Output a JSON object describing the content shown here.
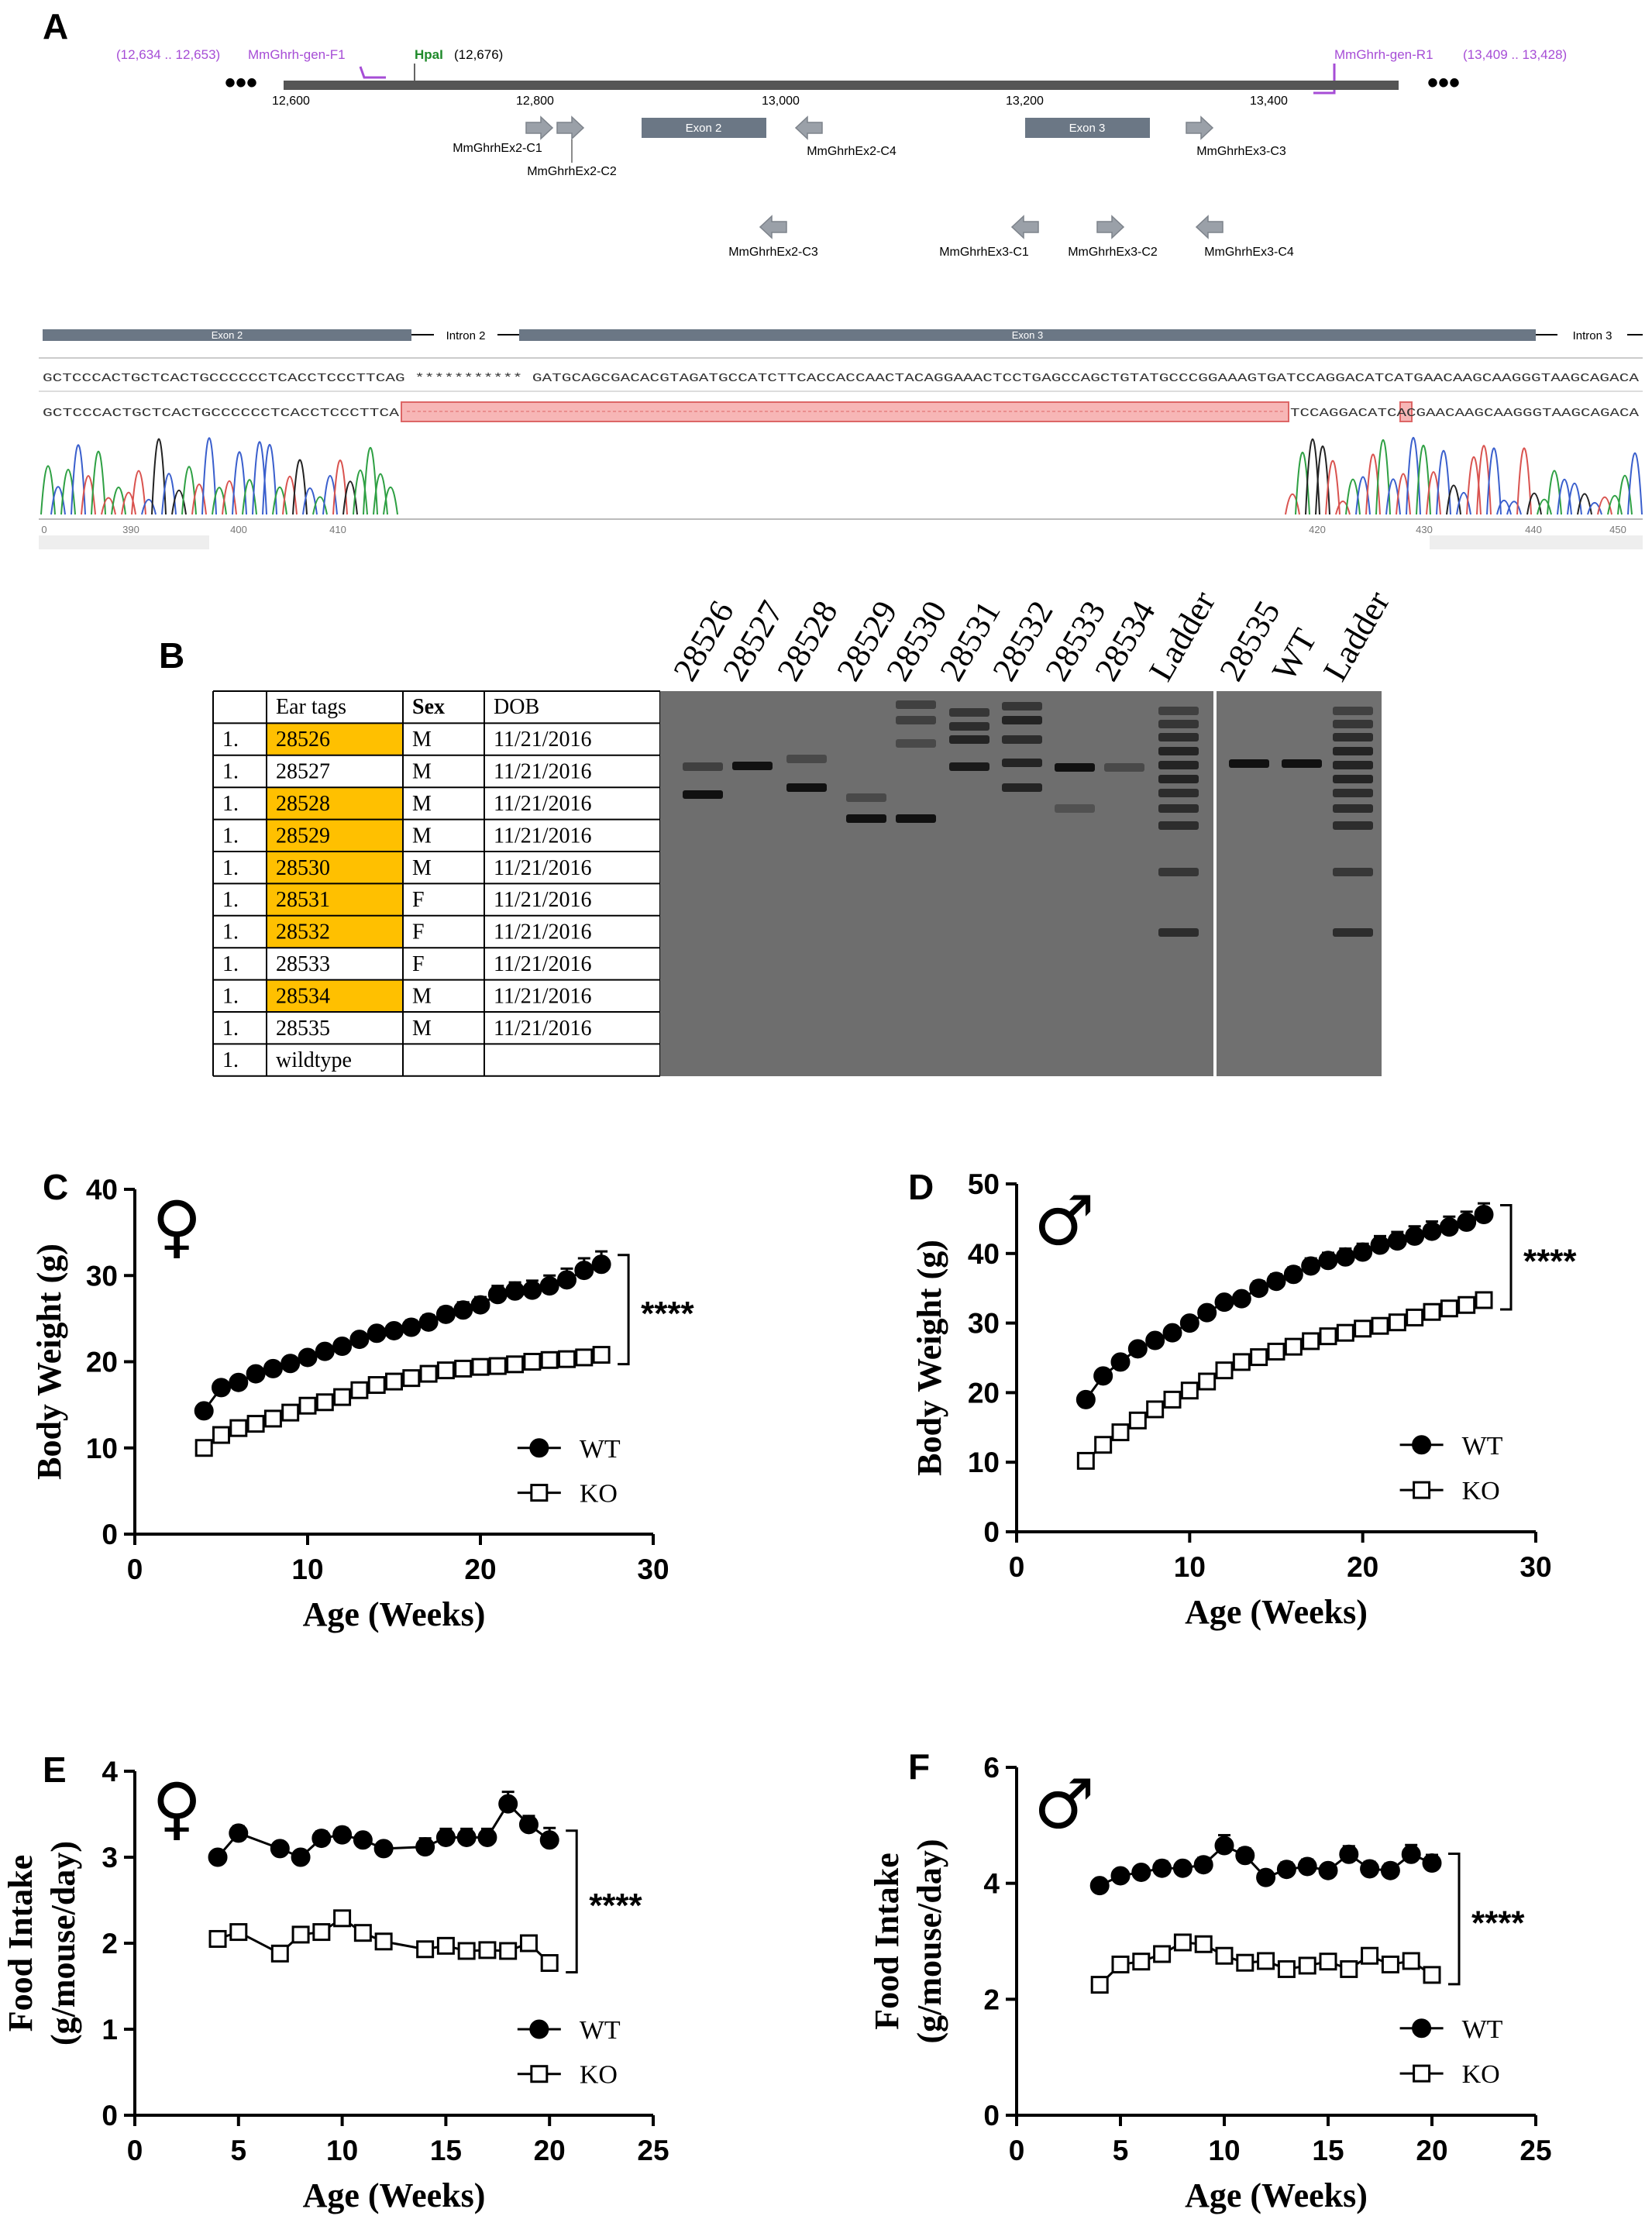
{
  "panel_a": {
    "label": "A",
    "primer_f": {
      "coords": "(12,634 .. 12,653)",
      "name": "MmGhrh-gen-F1"
    },
    "site": {
      "name": "HpaI",
      "coords": "(12,676)"
    },
    "primer_r": {
      "name": "MmGhrh-gen-R1",
      "coords": "(13,409 .. 13,428)"
    },
    "scale_ticks": [
      "12,600",
      "12,800",
      "13,000",
      "13,200",
      "13,400"
    ],
    "exons": [
      "Exon 2",
      "Exon 3"
    ],
    "guides": [
      "MmGhrhEx2-C1",
      "MmGhrhEx2-C2",
      "MmGhrhEx2-C4",
      "MmGhrhEx3-C3",
      "MmGhrhEx2-C3",
      "MmGhrhEx3-C1",
      "MmGhrhEx3-C2",
      "MmGhrhEx3-C4"
    ],
    "track": [
      "Exon 2",
      "Intron 2",
      "Exon 3",
      "Intron 3"
    ],
    "reference_sequence": "GCTCCCACTGCTCACTGCCCCCCTCACCTCCCTTCAG *********** GATGCAGCGACACGTAGATGCCATCTTCACCACCAACTACAGGAAACTCCTGAGCCAGCTGTATGCCCGGAAAGTGATCCAGGACATCATGAACAAGCAAGGGTAAGCAGACA",
    "read_sequence_left": "GCTCCCACTGCTCACTGCCCCCCTCACCTCCCTTCA",
    "read_sequence_right": "TCCAGGACATCACGAACAAGCAAGGGTAAGCAGACA",
    "trace_positions": [
      "0",
      "390",
      "400",
      "410",
      "420",
      "430",
      "440",
      "450"
    ]
  },
  "panel_b": {
    "label": "B",
    "table": {
      "header": [
        "Ear tags",
        "Sex",
        "DOB"
      ],
      "highlight_color": "#ffc000",
      "rows": [
        {
          "cells": [
            "1.",
            "28526",
            "M",
            "11/21/2016"
          ],
          "highlight": true
        },
        {
          "cells": [
            "1.",
            "28527",
            "M",
            "11/21/2016"
          ],
          "highlight": false
        },
        {
          "cells": [
            "1.",
            "28528",
            "M",
            "11/21/2016"
          ],
          "highlight": true
        },
        {
          "cells": [
            "1.",
            "28529",
            "M",
            "11/21/2016"
          ],
          "highlight": true
        },
        {
          "cells": [
            "1.",
            "28530",
            "M",
            "11/21/2016"
          ],
          "highlight": true
        },
        {
          "cells": [
            "1.",
            "28531",
            "F",
            "11/21/2016"
          ],
          "highlight": true
        },
        {
          "cells": [
            "1.",
            "28532",
            "F",
            "11/21/2016"
          ],
          "highlight": true
        },
        {
          "cells": [
            "1.",
            "28533",
            "F",
            "11/21/2016"
          ],
          "highlight": false
        },
        {
          "cells": [
            "1.",
            "28534",
            "M",
            "11/21/2016"
          ],
          "highlight": true
        },
        {
          "cells": [
            "1.",
            "28535",
            "M",
            "11/21/2016"
          ],
          "highlight": false
        },
        {
          "cells": [
            "1.",
            "wildtype"
          ],
          "highlight": false
        }
      ]
    },
    "gel_lanes": [
      "28526",
      "28527",
      "28528",
      "28529",
      "28530",
      "28531",
      "28532",
      "28533",
      "28534",
      "Ladder",
      "28535",
      "WT",
      "Ladder"
    ]
  },
  "chart_data": [
    {
      "type": "line",
      "panel": "C",
      "symbol": "♀",
      "xlabel": "Age (Weeks)",
      "ylabel": "Body Weight (g)",
      "xlim": [
        0,
        30
      ],
      "ylim": [
        0,
        40
      ],
      "xticks": [
        0,
        10,
        20,
        30
      ],
      "yticks": [
        0,
        10,
        20,
        30,
        40
      ],
      "legend": "lower right",
      "annotation": "****",
      "series": [
        {
          "name": "WT",
          "color": "#000000",
          "marker": "circle",
          "marker_fill": "#000000",
          "x": [
            4,
            5,
            6,
            7,
            8,
            9,
            10,
            11,
            12,
            13,
            14,
            15,
            16,
            17,
            18,
            19,
            20,
            21,
            22,
            23,
            24,
            25,
            26,
            27
          ],
          "values": [
            14.3,
            17.0,
            17.6,
            18.6,
            19.2,
            19.8,
            20.5,
            21.2,
            21.8,
            22.6,
            23.3,
            23.6,
            24.0,
            24.6,
            25.5,
            26.0,
            26.6,
            27.8,
            28.2,
            28.3,
            28.8,
            29.5,
            30.6,
            31.3
          ],
          "errors": [
            0.5,
            0.5,
            0.5,
            0.5,
            0.5,
            0.6,
            0.6,
            0.6,
            0.6,
            0.7,
            0.7,
            0.7,
            0.8,
            0.8,
            0.8,
            0.9,
            0.9,
            1.0,
            1.0,
            1.1,
            1.2,
            1.3,
            1.4,
            1.5
          ]
        },
        {
          "name": "KO",
          "color": "#000000",
          "marker": "square",
          "marker_fill": "#ffffff",
          "x": [
            4,
            5,
            6,
            7,
            8,
            9,
            10,
            11,
            12,
            13,
            14,
            15,
            16,
            17,
            18,
            19,
            20,
            21,
            22,
            23,
            24,
            25,
            26,
            27
          ],
          "values": [
            10.0,
            11.5,
            12.3,
            12.8,
            13.4,
            14.1,
            14.9,
            15.3,
            15.9,
            16.7,
            17.3,
            17.7,
            18.1,
            18.6,
            19.0,
            19.2,
            19.4,
            19.5,
            19.7,
            20.0,
            20.2,
            20.3,
            20.5,
            20.8
          ],
          "errors": [
            0.3,
            0.3,
            0.3,
            0.3,
            0.3,
            0.3,
            0.4,
            0.4,
            0.4,
            0.4,
            0.4,
            0.5,
            0.5,
            0.5,
            0.5,
            0.5,
            0.5,
            0.6,
            0.6,
            0.6,
            0.6,
            0.7,
            0.7,
            0.7
          ]
        }
      ]
    },
    {
      "type": "line",
      "panel": "D",
      "symbol": "♂",
      "xlabel": "Age (Weeks)",
      "ylabel": "Body Weight (g)",
      "xlim": [
        0,
        30
      ],
      "ylim": [
        0,
        50
      ],
      "xticks": [
        0,
        10,
        20,
        30
      ],
      "yticks": [
        0,
        10,
        20,
        30,
        40,
        50
      ],
      "legend": "lower right",
      "annotation": "****",
      "series": [
        {
          "name": "WT",
          "color": "#000000",
          "marker": "circle",
          "marker_fill": "#000000",
          "x": [
            4,
            5,
            6,
            7,
            8,
            9,
            10,
            11,
            12,
            13,
            14,
            15,
            16,
            17,
            18,
            19,
            20,
            21,
            22,
            23,
            24,
            25,
            26,
            27
          ],
          "values": [
            19.0,
            22.4,
            24.4,
            26.3,
            27.5,
            28.6,
            30.0,
            31.5,
            33.0,
            33.5,
            35.0,
            36.0,
            37.0,
            38.2,
            39.0,
            39.5,
            40.2,
            41.2,
            41.8,
            42.5,
            43.2,
            43.8,
            44.5,
            45.6
          ],
          "errors": [
            0.6,
            0.6,
            0.6,
            0.7,
            0.7,
            0.7,
            0.8,
            0.8,
            0.9,
            0.9,
            1.0,
            1.0,
            1.0,
            1.1,
            1.1,
            1.2,
            1.2,
            1.3,
            1.3,
            1.4,
            1.4,
            1.5,
            1.5,
            1.6
          ]
        },
        {
          "name": "KO",
          "color": "#000000",
          "marker": "square",
          "marker_fill": "#ffffff",
          "x": [
            4,
            5,
            6,
            7,
            8,
            9,
            10,
            11,
            12,
            13,
            14,
            15,
            16,
            17,
            18,
            19,
            20,
            21,
            22,
            23,
            24,
            25,
            26,
            27
          ],
          "values": [
            10.2,
            12.5,
            14.3,
            16.0,
            17.6,
            19.0,
            20.3,
            21.6,
            23.2,
            24.4,
            25.1,
            25.9,
            26.6,
            27.4,
            28.1,
            28.6,
            29.2,
            29.6,
            30.1,
            30.8,
            31.6,
            32.1,
            32.6,
            33.3
          ],
          "errors": [
            0.4,
            0.4,
            0.4,
            0.5,
            0.5,
            0.5,
            0.5,
            0.6,
            0.6,
            0.6,
            0.6,
            0.7,
            0.7,
            0.7,
            0.7,
            0.8,
            0.8,
            0.8,
            0.8,
            0.9,
            0.9,
            0.9,
            1.0,
            1.0
          ]
        }
      ]
    },
    {
      "type": "line",
      "panel": "E",
      "symbol": "♀",
      "xlabel": "Age (Weeks)",
      "ylabel": [
        "Food Intake",
        "(g/mouse/day)"
      ],
      "xlim": [
        0,
        25
      ],
      "ylim": [
        0,
        4
      ],
      "xticks": [
        0,
        5,
        10,
        15,
        20,
        25
      ],
      "yticks": [
        0,
        1,
        2,
        3,
        4
      ],
      "legend": "lower right",
      "annotation": "****",
      "series": [
        {
          "name": "WT",
          "color": "#000000",
          "marker": "circle",
          "marker_fill": "#000000",
          "x": [
            4,
            5,
            7,
            8,
            9,
            10,
            11,
            12,
            14,
            15,
            16,
            17,
            18,
            19,
            20
          ],
          "values": [
            3.0,
            3.28,
            3.1,
            3.0,
            3.22,
            3.26,
            3.2,
            3.1,
            3.12,
            3.23,
            3.23,
            3.23,
            3.62,
            3.38,
            3.2
          ],
          "errors": [
            0.06,
            0.08,
            0.07,
            0.06,
            0.08,
            0.08,
            0.07,
            0.06,
            0.1,
            0.1,
            0.1,
            0.1,
            0.14,
            0.1,
            0.14
          ]
        },
        {
          "name": "KO",
          "color": "#000000",
          "marker": "square",
          "marker_fill": "#ffffff",
          "x": [
            4,
            5,
            7,
            8,
            9,
            10,
            11,
            12,
            14,
            15,
            16,
            17,
            18,
            19,
            20
          ],
          "values": [
            2.05,
            2.13,
            1.88,
            2.1,
            2.13,
            2.29,
            2.12,
            2.02,
            1.93,
            1.97,
            1.91,
            1.92,
            1.91,
            2.0,
            1.77
          ],
          "errors": [
            0.05,
            0.05,
            0.06,
            0.05,
            0.06,
            0.07,
            0.06,
            0.05,
            0.05,
            0.05,
            0.06,
            0.06,
            0.05,
            0.07,
            0.05
          ]
        }
      ]
    },
    {
      "type": "line",
      "panel": "F",
      "symbol": "♂",
      "xlabel": "Age (Weeks)",
      "ylabel": [
        "Food Intake",
        "(g/mouse/day)"
      ],
      "xlim": [
        0,
        25
      ],
      "ylim": [
        0,
        6
      ],
      "xticks": [
        0,
        5,
        10,
        15,
        20,
        25
      ],
      "yticks": [
        0,
        2,
        4,
        6
      ],
      "legend": "lower right",
      "annotation": "****",
      "series": [
        {
          "name": "WT",
          "color": "#000000",
          "marker": "circle",
          "marker_fill": "#000000",
          "x": [
            4,
            5,
            6,
            7,
            8,
            9,
            10,
            11,
            12,
            13,
            14,
            15,
            16,
            17,
            18,
            19,
            20
          ],
          "values": [
            3.96,
            4.13,
            4.19,
            4.26,
            4.26,
            4.32,
            4.65,
            4.48,
            4.1,
            4.24,
            4.29,
            4.22,
            4.5,
            4.25,
            4.22,
            4.5,
            4.35
          ],
          "errors": [
            0.06,
            0.1,
            0.1,
            0.12,
            0.1,
            0.12,
            0.18,
            0.12,
            0.1,
            0.12,
            0.12,
            0.1,
            0.14,
            0.12,
            0.12,
            0.16,
            0.14
          ]
        },
        {
          "name": "KO",
          "color": "#000000",
          "marker": "square",
          "marker_fill": "#ffffff",
          "x": [
            4,
            5,
            6,
            7,
            8,
            9,
            10,
            11,
            12,
            13,
            14,
            15,
            16,
            17,
            18,
            19,
            20
          ],
          "values": [
            2.25,
            2.6,
            2.65,
            2.78,
            2.98,
            2.95,
            2.75,
            2.63,
            2.66,
            2.52,
            2.58,
            2.65,
            2.52,
            2.75,
            2.6,
            2.66,
            2.42
          ],
          "errors": [
            0.07,
            0.07,
            0.07,
            0.07,
            0.07,
            0.07,
            0.07,
            0.07,
            0.07,
            0.07,
            0.07,
            0.07,
            0.07,
            0.07,
            0.07,
            0.07,
            0.07
          ]
        }
      ]
    }
  ]
}
